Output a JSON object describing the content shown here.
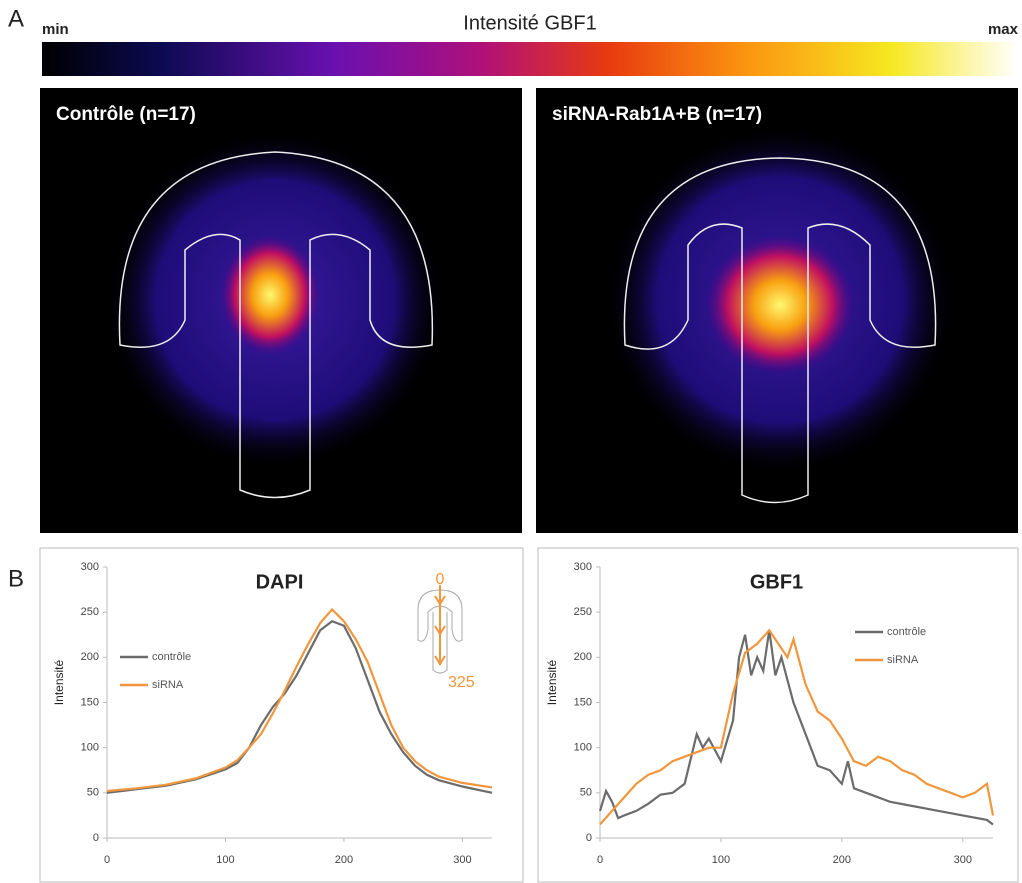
{
  "figure": {
    "panel_a": "A",
    "panel_b": "B",
    "colorbar_title": "Intensité GBF1",
    "colorbar_min": "min",
    "colorbar_max": "max",
    "image_left": "Contrôle (n=17)",
    "image_right": "siRNA-Rab1A+B  (n=17)"
  },
  "chart_data": [
    {
      "type": "line",
      "title": "DAPI",
      "y_label": "Intensité",
      "legend": "center left",
      "annotations": [
        "0",
        "325"
      ],
      "xlim": [
        0,
        325
      ],
      "xticks": [
        0,
        100,
        200,
        300
      ],
      "ylim": [
        0,
        300
      ],
      "yticks": [
        0,
        50,
        100,
        150,
        200,
        250,
        300
      ],
      "series": [
        {
          "name": "contrôle",
          "color": "#6b6b6b",
          "x": [
            0,
            25,
            50,
            75,
            100,
            110,
            120,
            130,
            140,
            150,
            160,
            170,
            180,
            190,
            200,
            210,
            220,
            230,
            240,
            250,
            260,
            270,
            280,
            300,
            325
          ],
          "values": [
            50,
            54,
            58,
            65,
            76,
            83,
            100,
            125,
            145,
            160,
            180,
            205,
            230,
            240,
            235,
            210,
            175,
            140,
            115,
            95,
            80,
            70,
            64,
            57,
            50
          ]
        },
        {
          "name": "siRNA",
          "color": "#f0963c",
          "x": [
            0,
            25,
            50,
            75,
            100,
            110,
            120,
            130,
            140,
            150,
            160,
            170,
            180,
            190,
            200,
            210,
            220,
            230,
            240,
            250,
            260,
            270,
            280,
            300,
            325
          ],
          "values": [
            52,
            55,
            59,
            66,
            78,
            86,
            100,
            115,
            138,
            163,
            190,
            215,
            238,
            253,
            240,
            220,
            195,
            160,
            125,
            100,
            85,
            75,
            68,
            61,
            56
          ]
        }
      ]
    },
    {
      "type": "line",
      "title": "GBF1",
      "y_label": "Intensité",
      "legend": "upper right",
      "xlim": [
        0,
        325
      ],
      "xticks": [
        0,
        100,
        200,
        300
      ],
      "ylim": [
        0,
        300
      ],
      "yticks": [
        0,
        50,
        100,
        150,
        200,
        250,
        300
      ],
      "series": [
        {
          "name": "contrôle",
          "color": "#6b6b6b",
          "x": [
            0,
            5,
            10,
            15,
            20,
            30,
            40,
            50,
            60,
            70,
            80,
            85,
            90,
            100,
            110,
            115,
            120,
            125,
            130,
            135,
            140,
            145,
            150,
            160,
            170,
            180,
            190,
            200,
            205,
            210,
            220,
            240,
            260,
            280,
            300,
            320,
            325
          ],
          "values": [
            30,
            52,
            40,
            22,
            25,
            30,
            38,
            48,
            50,
            60,
            115,
            100,
            110,
            85,
            130,
            200,
            225,
            180,
            200,
            185,
            230,
            180,
            200,
            150,
            115,
            80,
            75,
            60,
            85,
            55,
            50,
            40,
            35,
            30,
            25,
            20,
            15
          ]
        },
        {
          "name": "siRNA",
          "color": "#f0963c",
          "x": [
            0,
            10,
            20,
            30,
            40,
            50,
            60,
            70,
            80,
            90,
            100,
            110,
            120,
            130,
            140,
            150,
            155,
            160,
            170,
            180,
            190,
            200,
            210,
            220,
            230,
            240,
            250,
            260,
            270,
            280,
            290,
            300,
            310,
            320,
            325
          ],
          "values": [
            15,
            30,
            45,
            60,
            70,
            75,
            85,
            90,
            95,
            100,
            100,
            160,
            205,
            215,
            230,
            210,
            200,
            220,
            170,
            140,
            130,
            110,
            85,
            80,
            90,
            85,
            75,
            70,
            60,
            55,
            50,
            45,
            50,
            60,
            25
          ]
        }
      ]
    }
  ]
}
